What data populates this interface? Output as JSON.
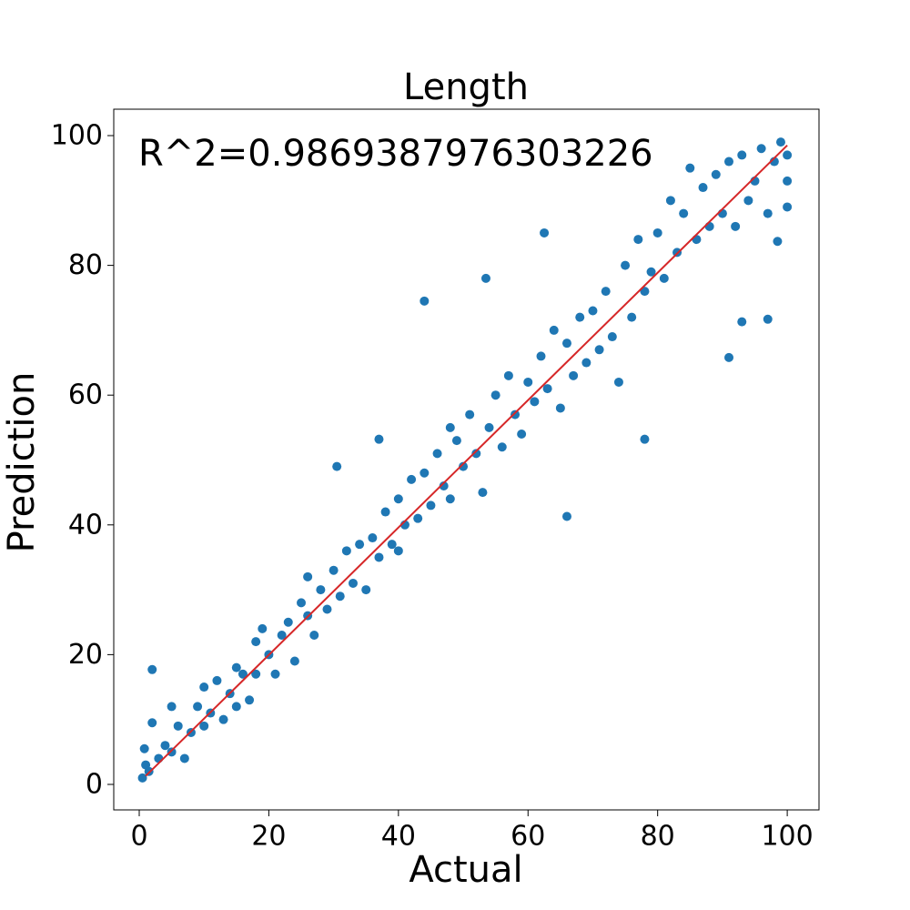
{
  "chart_data": {
    "type": "scatter",
    "title": "Length",
    "x_label": "Actual",
    "y_label": "Prediction",
    "annotation": "R^2=0.9869387976303226",
    "xlim": [
      -3.93,
      104.9
    ],
    "ylim": [
      -3.93,
      104.07
    ],
    "xticks": [
      0,
      20,
      40,
      60,
      80,
      100
    ],
    "yticks": [
      0,
      20,
      40,
      60,
      80,
      100
    ],
    "series": [
      {
        "type": "scatter",
        "color": "#1f77b4",
        "x": [
          0.5,
          0.8,
          1,
          1.5,
          2,
          2,
          3,
          4,
          5,
          5,
          6,
          7,
          8,
          9,
          10,
          10,
          11,
          12,
          13,
          14,
          15,
          15,
          16,
          17,
          18,
          18,
          19,
          20,
          21,
          22,
          23,
          24,
          25,
          26,
          26,
          27,
          28,
          29,
          30,
          30.5,
          31,
          32,
          33,
          34,
          35,
          36,
          37,
          37,
          38,
          39,
          40,
          40,
          41,
          42,
          43,
          44,
          44,
          45,
          46,
          47,
          48,
          48,
          49,
          50,
          51,
          52,
          53,
          53.5,
          54,
          55,
          56,
          57,
          58,
          59,
          60,
          61,
          62,
          62.5,
          63,
          64,
          65,
          66,
          66,
          67,
          68,
          69,
          70,
          71,
          72,
          73,
          74,
          75,
          76,
          77,
          78,
          78,
          79,
          80,
          81,
          82,
          83,
          84,
          85,
          86,
          87,
          88,
          89,
          90,
          91,
          91,
          92,
          93,
          93,
          94,
          95,
          96,
          97,
          97,
          98,
          98.5,
          99,
          100,
          100,
          100
        ],
        "values": [
          1,
          5.5,
          3,
          2,
          17.7,
          9.5,
          4,
          6,
          5,
          12,
          9,
          4,
          8,
          12,
          9,
          15,
          11,
          16,
          10,
          14,
          18,
          12,
          17,
          13,
          22,
          17,
          24,
          20,
          17,
          23,
          25,
          19,
          28,
          26,
          32,
          23,
          30,
          27,
          33,
          49,
          29,
          36,
          31,
          37,
          30,
          38,
          53.2,
          35,
          42,
          37,
          44,
          36,
          40,
          47,
          41,
          74.5,
          48,
          43,
          51,
          46,
          55,
          44,
          53,
          49,
          57,
          51,
          45,
          78,
          55,
          60,
          52,
          63,
          57,
          54,
          62,
          59,
          66,
          85,
          61,
          70,
          58,
          41.3,
          68,
          63,
          72,
          65,
          73,
          67,
          76,
          69,
          62,
          80,
          72,
          84,
          53.2,
          76,
          79,
          85,
          78,
          90,
          82,
          88,
          95,
          84,
          92,
          86,
          94,
          88,
          65.8,
          96,
          86,
          71.3,
          97,
          90,
          93,
          98,
          71.7,
          88,
          96,
          83.7,
          99,
          93,
          97,
          89
        ]
      },
      {
        "type": "line",
        "color": "#d62728",
        "x": [
          1,
          100
        ],
        "values": [
          1.3,
          98.5
        ]
      }
    ]
  }
}
